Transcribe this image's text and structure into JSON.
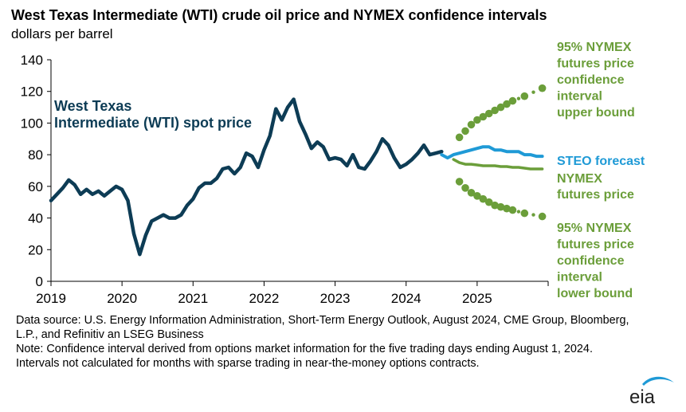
{
  "title": "West Texas Intermediate (WTI) crude oil price and NYMEX confidence intervals",
  "subtitle": "dollars per barrel",
  "source_note": "Data source: U.S. Energy Information Administration, Short-Term Energy Outlook, August 2024, CME Group, Bloomberg, L.P., and Refinitiv an LSEG Business",
  "method_note": "Note: Confidence interval derived from options market information for the five trading days ending August 1, 2024. Intervals not calculated for months with sparse trading in near-the-money options contracts.",
  "logo_text": "eia",
  "colors": {
    "wti": "#0d3c55",
    "steo": "#1f9ad6",
    "nymex": "#6b9e3a",
    "axis": "#000000"
  },
  "chart_data": {
    "type": "line",
    "title": "West Texas Intermediate (WTI) crude oil price and NYMEX confidence intervals",
    "ylabel": "dollars per barrel",
    "xlabel": "",
    "ylim": [
      0,
      140
    ],
    "yticks": [
      0,
      20,
      40,
      60,
      80,
      100,
      120,
      140
    ],
    "xlim": [
      2019,
      2026
    ],
    "xticks": [
      2019,
      2020,
      2021,
      2022,
      2023,
      2024,
      2025
    ],
    "grid": false,
    "series": [
      {
        "name": "West Texas Intermediate (WTI) spot price",
        "label_lines": [
          "West Texas",
          "Intermediate (WTI) spot price"
        ],
        "style": "line",
        "x": [
          2019.0,
          2019.083,
          2019.167,
          2019.25,
          2019.333,
          2019.417,
          2019.5,
          2019.583,
          2019.667,
          2019.75,
          2019.833,
          2019.917,
          2020.0,
          2020.083,
          2020.167,
          2020.25,
          2020.333,
          2020.417,
          2020.5,
          2020.583,
          2020.667,
          2020.75,
          2020.833,
          2020.917,
          2021.0,
          2021.083,
          2021.167,
          2021.25,
          2021.333,
          2021.417,
          2021.5,
          2021.583,
          2021.667,
          2021.75,
          2021.833,
          2021.917,
          2022.0,
          2022.083,
          2022.167,
          2022.25,
          2022.333,
          2022.417,
          2022.5,
          2022.583,
          2022.667,
          2022.75,
          2022.833,
          2022.917,
          2023.0,
          2023.083,
          2023.167,
          2023.25,
          2023.333,
          2023.417,
          2023.5,
          2023.583,
          2023.667,
          2023.75,
          2023.833,
          2023.917,
          2024.0,
          2024.083,
          2024.167,
          2024.25,
          2024.333,
          2024.417,
          2024.5
        ],
        "y": [
          51,
          55,
          59,
          64,
          61,
          55,
          58,
          55,
          57,
          54,
          57,
          60,
          58,
          51,
          30,
          17,
          29,
          38,
          40,
          42,
          40,
          40,
          42,
          48,
          52,
          59,
          62,
          62,
          65,
          71,
          72,
          68,
          72,
          81,
          79,
          72,
          83,
          92,
          109,
          102,
          110,
          115,
          101,
          93,
          84,
          88,
          85,
          77,
          78,
          77,
          73,
          80,
          72,
          71,
          76,
          82,
          90,
          86,
          78,
          72,
          74,
          77,
          81,
          86,
          80,
          81,
          82
        ]
      },
      {
        "name": "STEO forecast",
        "label_lines": [
          "STEO forecast"
        ],
        "style": "line",
        "x": [
          2024.5,
          2024.583,
          2024.667,
          2024.75,
          2024.833,
          2024.917,
          2025.0,
          2025.083,
          2025.167,
          2025.25,
          2025.333,
          2025.417,
          2025.5,
          2025.583,
          2025.667,
          2025.75,
          2025.833,
          2025.917
        ],
        "y": [
          80,
          78,
          80,
          81,
          82,
          83,
          84,
          85,
          85,
          83,
          83,
          82,
          82,
          82,
          80,
          80,
          79,
          79
        ]
      },
      {
        "name": "NYMEX futures price",
        "label_lines": [
          "NYMEX",
          "futures price"
        ],
        "style": "line",
        "x": [
          2024.667,
          2024.75,
          2024.833,
          2024.917,
          2025.0,
          2025.083,
          2025.167,
          2025.25,
          2025.333,
          2025.417,
          2025.5,
          2025.583,
          2025.667,
          2025.75,
          2025.833,
          2025.917
        ],
        "y": [
          77,
          75,
          74,
          74,
          73.5,
          73,
          73,
          73,
          72.5,
          72.5,
          72,
          72,
          71.5,
          71,
          71,
          71
        ]
      },
      {
        "name": "95% NYMEX futures price confidence interval upper bound",
        "label_lines": [
          "95% NYMEX",
          "futures price",
          "confidence",
          "interval",
          "upper bound"
        ],
        "style": "dots",
        "x": [
          2024.75,
          2024.833,
          2024.917,
          2025.0,
          2025.083,
          2025.167,
          2025.25,
          2025.333,
          2025.417,
          2025.5,
          2025.667,
          2025.917
        ],
        "y": [
          91,
          95,
          99,
          102,
          104,
          106,
          108,
          110,
          112,
          114,
          117,
          122
        ]
      },
      {
        "name": "95% NYMEX futures price confidence interval lower bound",
        "label_lines": [
          "95% NYMEX",
          "futures price",
          "confidence",
          "interval",
          "lower bound"
        ],
        "style": "dots",
        "x": [
          2024.75,
          2024.833,
          2024.917,
          2025.0,
          2025.083,
          2025.167,
          2025.25,
          2025.333,
          2025.417,
          2025.5,
          2025.667,
          2025.917
        ],
        "y": [
          63,
          59,
          56,
          54,
          52,
          50,
          48,
          47,
          46,
          45,
          43,
          41
        ]
      }
    ]
  }
}
